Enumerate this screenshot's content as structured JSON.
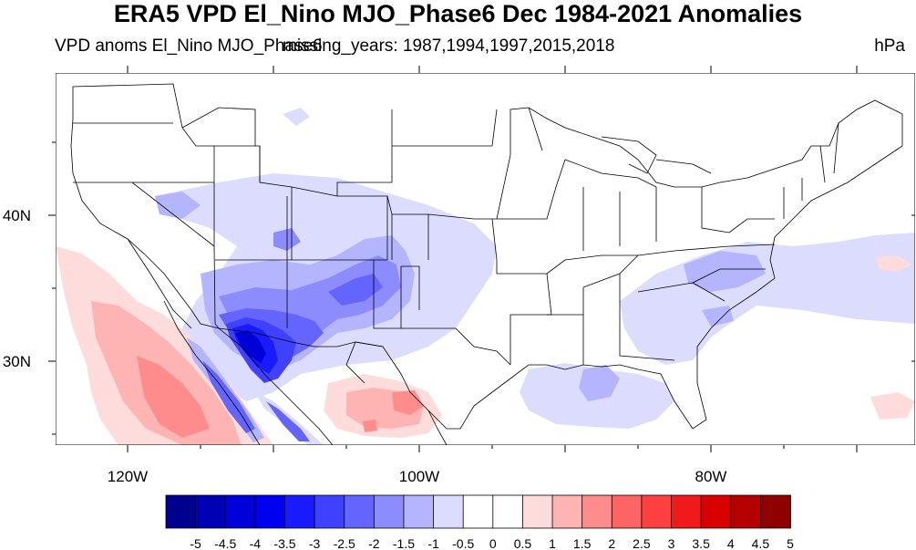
{
  "title": "ERA5 VPD El_Nino MJO_Phase6 Dec 1984-2021 Anomalies",
  "subtitle_left": "VPD anoms El_Nino MJO_Phase6",
  "subtitle_missing": "missing_years: 1987,1994,1997,2015,2018",
  "units": "hPa",
  "axes": {
    "lon_labels": [
      "120W",
      "100W",
      "80W"
    ],
    "lat_labels": [
      "40N",
      "30N"
    ]
  },
  "colorbar": {
    "labels": [
      "-5",
      "-4.5",
      "-4",
      "-3.5",
      "-3",
      "-2.5",
      "-2",
      "-1.5",
      "-1",
      "-0.5",
      "0",
      "0.5",
      "1",
      "1.5",
      "2",
      "2.5",
      "3",
      "3.5",
      "4",
      "4.5",
      "5"
    ],
    "colors": [
      "#00008f",
      "#0000b5",
      "#0000d9",
      "#0000f0",
      "#1a1aff",
      "#4040ff",
      "#6464ff",
      "#8c8cff",
      "#b4b4ff",
      "#dcdcff",
      "#ffffff",
      "#ffffff",
      "#ffdcdc",
      "#ffb4b4",
      "#ff8c8c",
      "#ff6464",
      "#ff4040",
      "#f01a1a",
      "#d90000",
      "#b50000",
      "#8f0000"
    ]
  }
}
